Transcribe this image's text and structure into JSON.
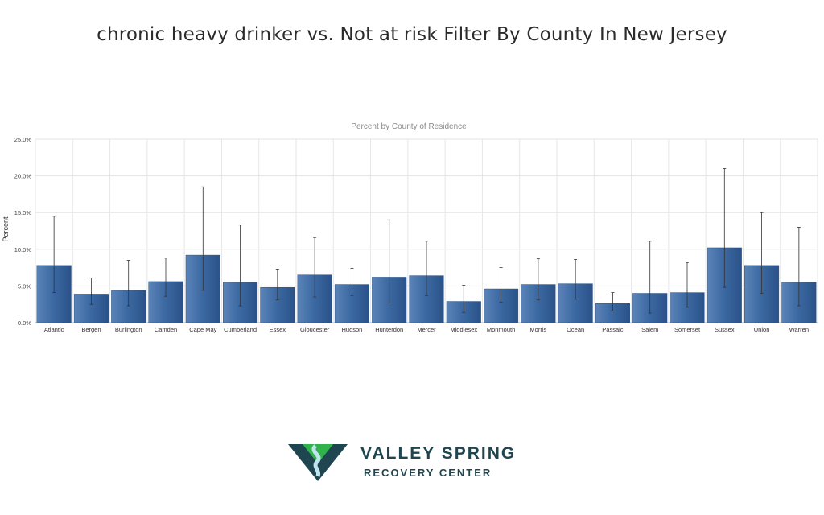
{
  "page_title": "chronic heavy drinker vs. Not at risk Filter By County In New Jersey",
  "brand": {
    "name_line1": "VALLEY SPRING",
    "name_line2": "RECOVERY CENTER",
    "logo_icon": "valley-spring-logo-icon",
    "colors": {
      "dark": "#1f4650",
      "green": "#2fb34a",
      "light_blue": "#bfe3ef"
    }
  },
  "chart_data": {
    "type": "bar",
    "title": "Percent by County of Residence",
    "xlabel": "",
    "ylabel": "Percent",
    "ylim": [
      0,
      25
    ],
    "yticks": [
      "0.0%",
      "5.0%",
      "10.0%",
      "15.0%",
      "20.0%",
      "25.0%"
    ],
    "ytick_values": [
      0,
      5,
      10,
      15,
      20,
      25
    ],
    "grid": true,
    "bar_color": "#3d6aa3",
    "error_bars": true,
    "categories": [
      "Atlantic",
      "Bergen",
      "Burlington",
      "Camden",
      "Cape May",
      "Cumberland",
      "Essex",
      "Gloucester",
      "Hudson",
      "Hunterdon",
      "Mercer",
      "Middlesex",
      "Monmouth",
      "Morris",
      "Ocean",
      "Passaic",
      "Salem",
      "Somerset",
      "Sussex",
      "Union",
      "Warren"
    ],
    "values": [
      7.8,
      3.9,
      4.4,
      5.6,
      9.2,
      5.5,
      4.8,
      6.5,
      5.2,
      6.2,
      6.4,
      2.9,
      4.6,
      5.2,
      5.3,
      2.6,
      4.0,
      4.1,
      10.2,
      7.8,
      5.5
    ],
    "error_low": [
      4.1,
      2.5,
      2.3,
      3.6,
      4.4,
      2.3,
      3.1,
      3.5,
      3.7,
      2.7,
      3.7,
      1.4,
      2.8,
      3.1,
      3.2,
      1.6,
      1.3,
      2.1,
      4.8,
      4.0,
      2.3
    ],
    "error_high": [
      14.5,
      6.1,
      8.5,
      8.8,
      18.5,
      13.3,
      7.3,
      11.6,
      7.4,
      14.0,
      11.1,
      5.1,
      7.5,
      8.7,
      8.6,
      4.1,
      11.1,
      8.2,
      21.0,
      15.0,
      13.0
    ]
  }
}
